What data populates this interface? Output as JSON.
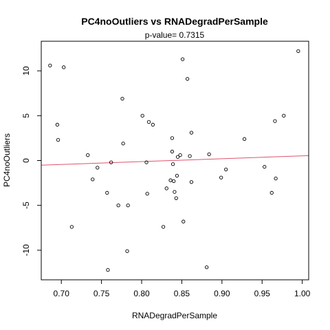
{
  "chart_data": {
    "type": "scatter",
    "title": "PC4noOutliers  vs  RNADegradPerSample",
    "subtitle": "p-value= 0.7315",
    "xlabel": "RNADegradPerSample",
    "ylabel": "PC4noOutliers",
    "xlim": [
      0.675,
      1.008
    ],
    "ylim": [
      -13.3,
      13.3
    ],
    "x_ticks": [
      0.7,
      0.75,
      0.8,
      0.85,
      0.9,
      0.95,
      1.0
    ],
    "x_tick_labels": [
      "0.70",
      "0.75",
      "0.80",
      "0.85",
      "0.90",
      "0.95",
      "1.00"
    ],
    "y_ticks": [
      -10,
      -5,
      0,
      5,
      10
    ],
    "y_tick_labels": [
      "-10",
      "-5",
      "0",
      "5",
      "10"
    ],
    "grid": false,
    "regression_line": {
      "x": [
        0.675,
        1.008
      ],
      "y": [
        -0.52,
        0.55
      ],
      "color": "#df536b"
    },
    "point_color": "#000000",
    "points": [
      [
        0.686,
        10.6
      ],
      [
        0.703,
        10.4
      ],
      [
        0.695,
        4.0
      ],
      [
        0.696,
        2.3
      ],
      [
        0.713,
        -7.4
      ],
      [
        0.733,
        0.6
      ],
      [
        0.739,
        -2.1
      ],
      [
        0.745,
        -0.8
      ],
      [
        0.757,
        -3.6
      ],
      [
        0.758,
        -12.2
      ],
      [
        0.762,
        -0.2
      ],
      [
        0.771,
        -5.0
      ],
      [
        0.776,
        6.9
      ],
      [
        0.777,
        1.9
      ],
      [
        0.782,
        -10.1
      ],
      [
        0.783,
        -5.0
      ],
      [
        0.801,
        5.0
      ],
      [
        0.806,
        -0.2
      ],
      [
        0.807,
        -3.7
      ],
      [
        0.809,
        4.3
      ],
      [
        0.814,
        4.0
      ],
      [
        0.827,
        -7.4
      ],
      [
        0.831,
        -3.1
      ],
      [
        0.836,
        -2.2
      ],
      [
        0.838,
        2.5
      ],
      [
        0.838,
        1.0
      ],
      [
        0.839,
        -0.4
      ],
      [
        0.84,
        -2.3
      ],
      [
        0.841,
        -3.5
      ],
      [
        0.843,
        -4.2
      ],
      [
        0.844,
        -1.7
      ],
      [
        0.845,
        0.4
      ],
      [
        0.848,
        0.6
      ],
      [
        0.851,
        11.3
      ],
      [
        0.852,
        -6.8
      ],
      [
        0.857,
        9.1
      ],
      [
        0.86,
        0.5
      ],
      [
        0.862,
        -2.4
      ],
      [
        0.862,
        3.1
      ],
      [
        0.881,
        -11.9
      ],
      [
        0.884,
        0.7
      ],
      [
        0.899,
        -1.9
      ],
      [
        0.905,
        -1.0
      ],
      [
        0.928,
        2.4
      ],
      [
        0.953,
        -0.7
      ],
      [
        0.962,
        -3.6
      ],
      [
        0.966,
        4.4
      ],
      [
        0.967,
        -2.0
      ],
      [
        0.977,
        5.0
      ],
      [
        0.995,
        12.2
      ]
    ]
  }
}
